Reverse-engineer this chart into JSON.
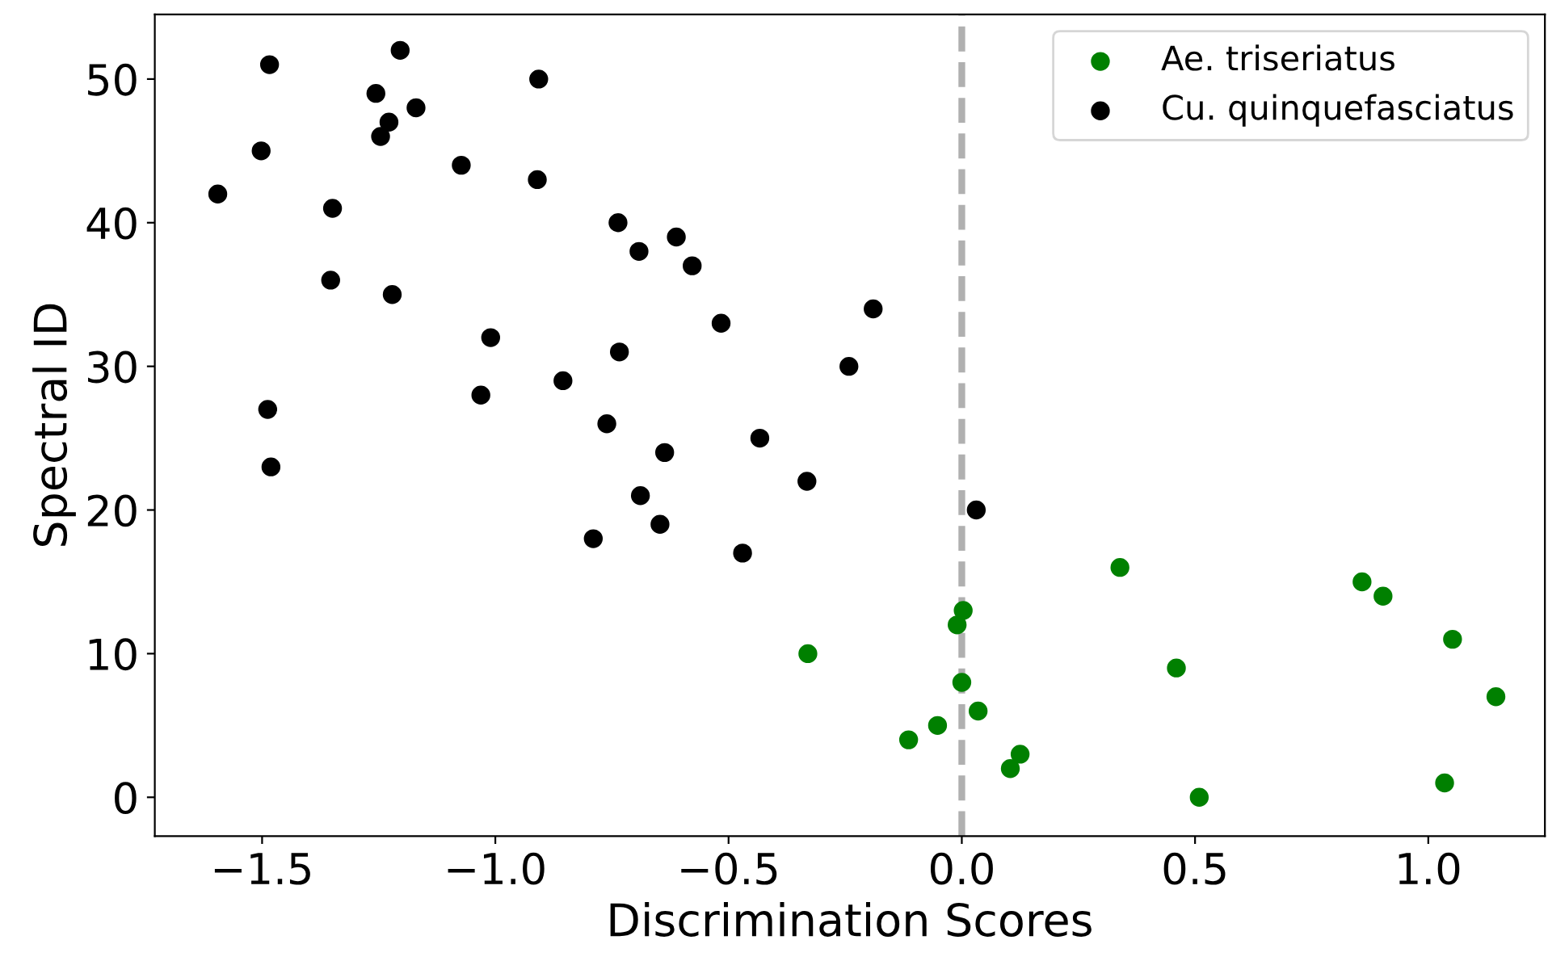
{
  "chart_data": {
    "type": "scatter",
    "xlabel": "Discrimination Scores",
    "ylabel": "Spectral ID",
    "xlim": [
      -1.73,
      1.25
    ],
    "ylim": [
      -2.7,
      54.5
    ],
    "xticks": [
      {
        "value": -1.5,
        "label": "−1.5"
      },
      {
        "value": -1.0,
        "label": "−1.0"
      },
      {
        "value": -0.5,
        "label": "−0.5"
      },
      {
        "value": 0,
        "label": "0.0"
      },
      0.5,
      {
        "value": 1,
        "label": "1.0"
      }
    ],
    "yticks": [
      0,
      10,
      20,
      30,
      40,
      50
    ],
    "grid": false,
    "legend": "top right",
    "marker": "circle",
    "ref_lines": [
      {
        "axis": "x",
        "value": 0,
        "color": "#b0b0b0",
        "line_style": "dashed"
      }
    ],
    "series": [
      {
        "name": "Ae. triseriatus",
        "color": "#008000",
        "x": [
          0.509,
          1.035,
          0.104,
          0.125,
          -0.114,
          -0.052,
          0.035,
          1.145,
          0.0,
          0.46,
          -0.33,
          1.052,
          -0.01,
          0.003,
          0.903,
          0.858,
          0.339
        ],
        "values": [
          0,
          1,
          2,
          3,
          4,
          5,
          6,
          7,
          8,
          9,
          10,
          11,
          12,
          13,
          14,
          15,
          16
        ]
      },
      {
        "name": "Cu. quinquefasciatus",
        "color": "#000000",
        "x": [
          -0.47,
          -0.79,
          -0.647,
          0.031,
          -0.689,
          -0.332,
          -1.481,
          -0.637,
          -0.433,
          -0.761,
          -1.488,
          -1.031,
          -0.855,
          -0.242,
          -0.734,
          -1.01,
          -0.516,
          -0.19,
          -1.221,
          -1.353,
          -0.578,
          -0.692,
          -0.612,
          -0.737,
          -1.349,
          -1.595,
          -0.91,
          -1.073,
          -1.502,
          -1.246,
          -1.228,
          -1.17,
          -1.256,
          -0.907,
          -1.484,
          -1.204
        ],
        "values": [
          17,
          18,
          19,
          20,
          21,
          22,
          23,
          24,
          25,
          26,
          27,
          28,
          29,
          30,
          31,
          32,
          33,
          34,
          35,
          36,
          37,
          38,
          39,
          40,
          41,
          42,
          43,
          44,
          45,
          46,
          47,
          48,
          49,
          50,
          51,
          52
        ]
      }
    ]
  }
}
